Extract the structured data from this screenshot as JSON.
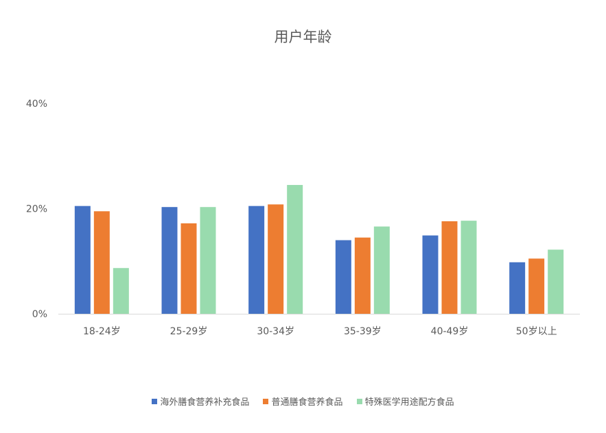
{
  "chart_data": {
    "type": "bar",
    "title": "用户年龄",
    "categories": [
      "18-24岁",
      "25-29岁",
      "30-34岁",
      "35-39岁",
      "40-49岁",
      "50岁以上"
    ],
    "series": [
      {
        "name": "海外膳食营养补充食品",
        "color": "#4472C4",
        "values": [
          20.5,
          20.3,
          20.5,
          14.0,
          14.9,
          9.8
        ]
      },
      {
        "name": "普通膳食营养食品",
        "color": "#ED7D31",
        "values": [
          19.5,
          17.2,
          20.8,
          14.5,
          17.6,
          10.5
        ]
      },
      {
        "name": "特殊医学用途配方食品",
        "color": "#99DBAE",
        "values": [
          8.7,
          20.3,
          24.5,
          16.6,
          17.7,
          12.2
        ]
      }
    ],
    "yticks": [
      "0%",
      "20%",
      "40%"
    ],
    "ylim": [
      0,
      40
    ],
    "xlabel": "",
    "ylabel": "",
    "grid": false,
    "legend_position": "bottom"
  }
}
